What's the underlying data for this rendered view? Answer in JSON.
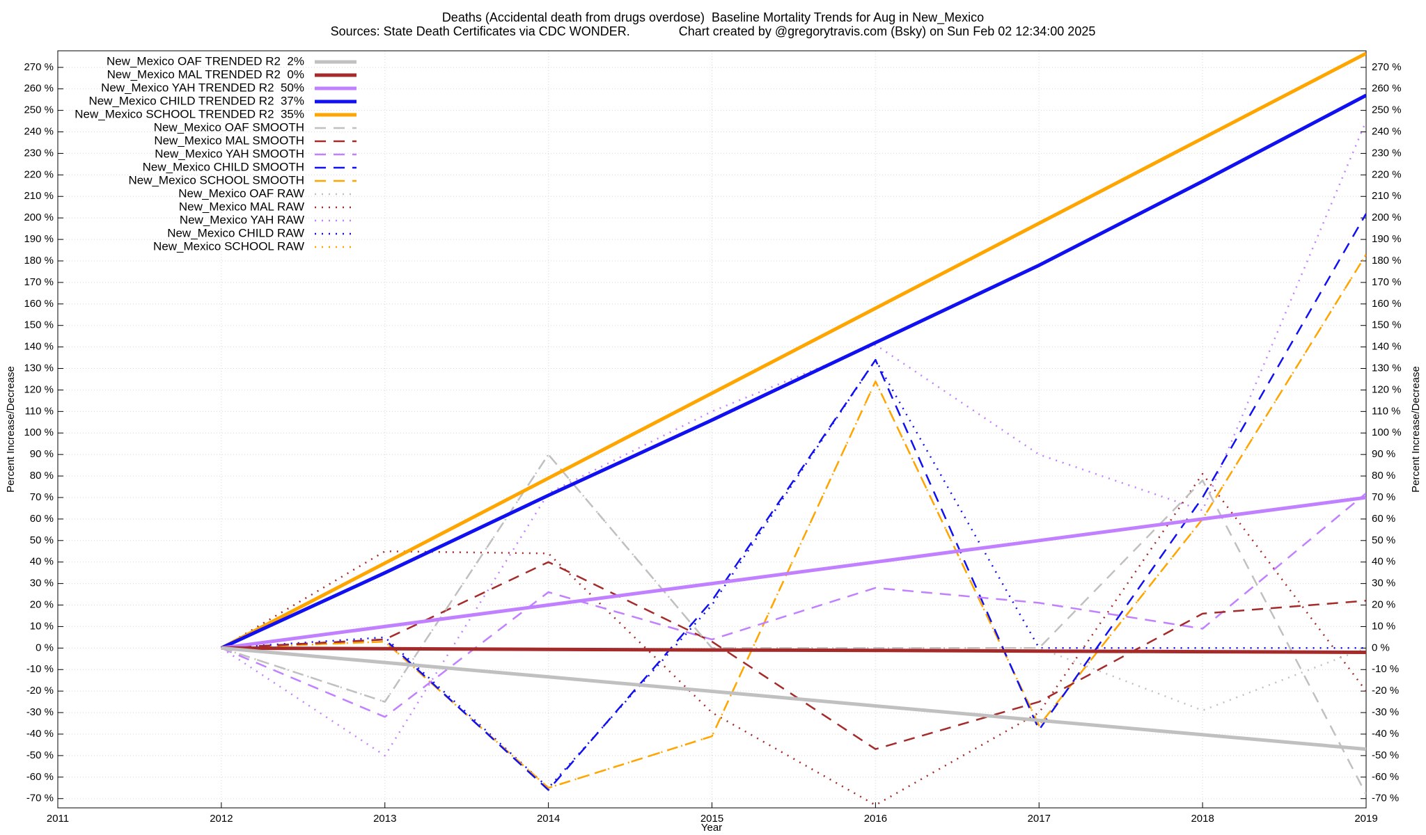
{
  "chart_data": {
    "type": "line",
    "title": "Deaths (Accidental death from drugs overdose)  Baseline Mortality Trends for Aug in New_Mexico",
    "subtitle": "Sources: State Death Certificates via CDC WONDER.              Chart created by @gregorytravis.com (Bsky) on Sun Feb 02 12:34:00 2025",
    "xlabel": "Year",
    "ylabel": "Percent Increase/Decrease",
    "x": [
      2012,
      2013,
      2014,
      2015,
      2016,
      2017,
      2018,
      2019
    ],
    "xlim": [
      2011,
      2019
    ],
    "xticks": [
      2011,
      2012,
      2013,
      2014,
      2015,
      2016,
      2017,
      2018,
      2019
    ],
    "ylim": [
      -74.3,
      277.7
    ],
    "yticks": [
      {
        "value": -70,
        "label": "-70 %"
      },
      {
        "value": -60,
        "label": "-60 %"
      },
      {
        "value": -50,
        "label": "-50 %"
      },
      {
        "value": -40,
        "label": "-40 %"
      },
      {
        "value": -30,
        "label": "-30 %"
      },
      {
        "value": -20,
        "label": "-20 %"
      },
      {
        "value": -10,
        "label": "-10 %"
      },
      {
        "value": 0,
        "label": "0 %"
      },
      {
        "value": 10,
        "label": "10 %"
      },
      {
        "value": 20,
        "label": "20 %"
      },
      {
        "value": 30,
        "label": "30 %"
      },
      {
        "value": 40,
        "label": "40 %"
      },
      {
        "value": 50,
        "label": "50 %"
      },
      {
        "value": 60,
        "label": "60 %"
      },
      {
        "value": 70,
        "label": "70 %"
      },
      {
        "value": 80,
        "label": "80 %"
      },
      {
        "value": 90,
        "label": "90 %"
      },
      {
        "value": 100,
        "label": "100 %"
      },
      {
        "value": 110,
        "label": "110 %"
      },
      {
        "value": 120,
        "label": "120 %"
      },
      {
        "value": 130,
        "label": "130 %"
      },
      {
        "value": 140,
        "label": "140 %"
      },
      {
        "value": 150,
        "label": "150 %"
      },
      {
        "value": 160,
        "label": "160 %"
      },
      {
        "value": 170,
        "label": "170 %"
      },
      {
        "value": 180,
        "label": "180 %"
      },
      {
        "value": 190,
        "label": "190 %"
      },
      {
        "value": 200,
        "label": "200 %"
      },
      {
        "value": 210,
        "label": "210 %"
      },
      {
        "value": 220,
        "label": "220 %"
      },
      {
        "value": 230,
        "label": "230 %"
      },
      {
        "value": 240,
        "label": "240 %"
      },
      {
        "value": 250,
        "label": "250 %"
      },
      {
        "value": 260,
        "label": "260 %"
      },
      {
        "value": 270,
        "label": "270 %"
      }
    ],
    "grid": true,
    "legend": "top-left",
    "series": [
      {
        "name": "New_Mexico OAF TRENDED R2  2%",
        "color": "#c0c0c0",
        "style": "solid",
        "values": [
          0,
          -6.7,
          -13.4,
          -20.1,
          -26.9,
          -33.6,
          -40.3,
          -47
        ]
      },
      {
        "name": "New_Mexico MAL TRENDED R2  0%",
        "color": "#a52a2a",
        "style": "solid",
        "values": [
          0,
          -0.3,
          -0.6,
          -0.9,
          -1.1,
          -1.4,
          -1.7,
          -2
        ]
      },
      {
        "name": "New_Mexico YAH TRENDED R2  50%",
        "color": "#c080ff",
        "style": "solid",
        "values": [
          0,
          10,
          20,
          30,
          40,
          50,
          60,
          70
        ]
      },
      {
        "name": "New_Mexico CHILD TRENDED R2  37%",
        "color": "#1010f0",
        "style": "solid",
        "values": [
          0,
          35,
          71,
          106,
          142,
          178,
          217,
          257
        ]
      },
      {
        "name": "New_Mexico SCHOOL TRENDED R2  35%",
        "color": "#ffa500",
        "style": "solid",
        "values": [
          0,
          39.5,
          79,
          118.5,
          158,
          197.5,
          237,
          276.5
        ]
      },
      {
        "name": "New_Mexico OAF SMOOTH",
        "color": "#c0c0c0",
        "style": "dashed",
        "values": [
          0,
          -25,
          90,
          0,
          0,
          0,
          78,
          -68
        ]
      },
      {
        "name": "New_Mexico MAL SMOOTH",
        "color": "#a52a2a",
        "style": "dashed",
        "values": [
          0,
          4,
          40,
          3,
          -47,
          -25,
          16,
          22
        ]
      },
      {
        "name": "New_Mexico YAH SMOOTH",
        "color": "#c080ff",
        "style": "dashed",
        "values": [
          0,
          -32,
          26,
          4,
          28,
          21,
          9,
          72
        ]
      },
      {
        "name": "New_Mexico CHILD SMOOTH",
        "color": "#1010f0",
        "style": "dashed",
        "values": [
          0,
          4,
          -66,
          22,
          134,
          -38,
          70,
          202
        ]
      },
      {
        "name": "New_Mexico SCHOOL SMOOTH",
        "color": "#ffa500",
        "style": "dashed",
        "values": [
          0,
          3,
          -65,
          -41,
          124,
          -36,
          60,
          183
        ]
      },
      {
        "name": "New_Mexico OAF RAW",
        "color": "#c0c0c0",
        "style": "dotted",
        "values": [
          0,
          -25,
          90,
          0,
          0,
          0,
          -29,
          0
        ]
      },
      {
        "name": "New_Mexico MAL RAW",
        "color": "#a52a2a",
        "style": "dotted",
        "values": [
          0,
          45,
          44,
          -30,
          -73,
          -30,
          81,
          -20
        ]
      },
      {
        "name": "New_Mexico YAH RAW",
        "color": "#c080ff",
        "style": "dotted",
        "values": [
          0,
          -50,
          72,
          110,
          141,
          90,
          64,
          245
        ]
      },
      {
        "name": "New_Mexico CHILD RAW",
        "color": "#1010f0",
        "style": "dotted",
        "values": [
          0,
          5,
          -65,
          20,
          134,
          0,
          0,
          0
        ]
      },
      {
        "name": "New_Mexico SCHOOL RAW",
        "color": "#ffa500",
        "style": "dotted",
        "values": [
          0,
          3,
          -65,
          -41,
          124,
          -36,
          60,
          183
        ]
      }
    ]
  }
}
